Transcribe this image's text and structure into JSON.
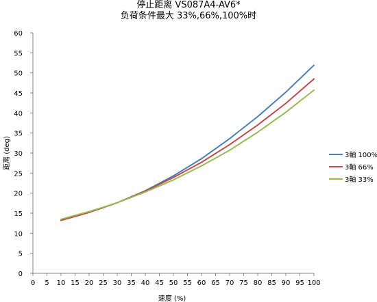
{
  "chart_data": {
    "type": "line",
    "title": "停止距离 VS087A4-AV6*",
    "subtitle": "负荷条件最大 33%,66%,100%时",
    "xlabel": "速度 (%)",
    "ylabel": "距离 (deg)",
    "xlim": [
      0,
      100
    ],
    "ylim": [
      0,
      60
    ],
    "x_ticks": [
      0,
      5,
      10,
      15,
      20,
      25,
      30,
      35,
      40,
      45,
      50,
      55,
      60,
      65,
      70,
      75,
      80,
      85,
      90,
      95,
      100
    ],
    "y_ticks": [
      0,
      5,
      10,
      15,
      20,
      25,
      30,
      35,
      40,
      45,
      50,
      55,
      60
    ],
    "grid": false,
    "legend_position": "right",
    "x": [
      10,
      20,
      30,
      40,
      50,
      60,
      70,
      80,
      90,
      100
    ],
    "series": [
      {
        "name": "3軸 100%",
        "color": "#4a7ebb",
        "values": [
          13.2,
          15.2,
          17.6,
          20.6,
          24.3,
          28.6,
          33.6,
          39.1,
          45.2,
          51.9
        ]
      },
      {
        "name": "3軸 66%",
        "color": "#be4b48",
        "values": [
          13.2,
          15.2,
          17.6,
          20.5,
          23.9,
          27.7,
          32.1,
          37.0,
          42.4,
          48.5
        ]
      },
      {
        "name": "3軸 33%",
        "color": "#98b954",
        "values": [
          13.5,
          15.4,
          17.6,
          20.3,
          23.3,
          26.8,
          30.7,
          35.2,
          40.2,
          45.7
        ]
      }
    ]
  }
}
